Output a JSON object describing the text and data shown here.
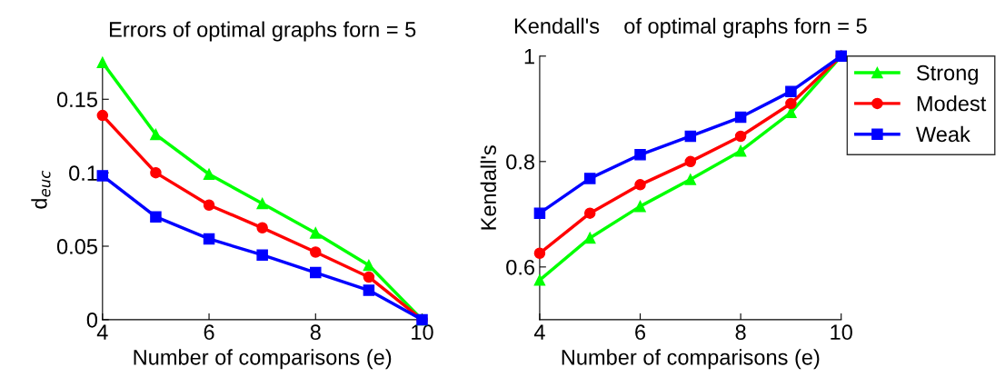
{
  "chart_data": [
    {
      "type": "line",
      "title": "Errors of optimal graphs forn = 5",
      "xlabel": "Number of comparisons (e)",
      "ylabel": "d$_{euc}$",
      "x": [
        4,
        5,
        6,
        7,
        8,
        9,
        10
      ],
      "xlim": [
        4,
        10
      ],
      "xticks": [
        4,
        6,
        8,
        10
      ],
      "ylim": [
        0,
        0.177
      ],
      "yticks": [
        0,
        0.05,
        0.1,
        0.15
      ],
      "grid": false,
      "legend": false,
      "series": [
        {
          "color": "#00ff00",
          "marker": "triangle",
          "values": [
            0.175,
            0.126,
            0.099,
            0.079,
            0.059,
            0.037,
            0
          ]
        },
        {
          "color": "#ff0000",
          "marker": "circle",
          "values": [
            0.139,
            0.1,
            0.078,
            0.0625,
            0.046,
            0.029,
            0
          ]
        },
        {
          "color": "#0000ff",
          "marker": "square",
          "values": [
            0.098,
            0.07,
            0.055,
            0.044,
            0.032,
            0.02,
            0
          ]
        }
      ]
    },
    {
      "type": "line",
      "title": "Kendall's    of optimal graphs forn = 5",
      "xlabel": "Number of comparisons (e)",
      "ylabel": "Kendall's",
      "x": [
        4,
        5,
        6,
        7,
        8,
        9,
        10
      ],
      "xlim": [
        4,
        10
      ],
      "xticks": [
        4,
        6,
        8,
        10
      ],
      "ylim": [
        0.5,
        1
      ],
      "yticks": [
        0.6,
        0.8,
        1
      ],
      "grid": false,
      "legend": "top right",
      "series": [
        {
          "name": "Strong",
          "color": "#00ff00",
          "marker": "triangle",
          "values": [
            0.575,
            0.655,
            0.715,
            0.766,
            0.82,
            0.893,
            1
          ]
        },
        {
          "name": "Modest",
          "color": "#ff0000",
          "marker": "circle",
          "values": [
            0.626,
            0.702,
            0.756,
            0.8,
            0.848,
            0.91,
            1
          ]
        },
        {
          "name": "Weak",
          "color": "#0000ff",
          "marker": "square",
          "values": [
            0.702,
            0.768,
            0.813,
            0.848,
            0.884,
            0.933,
            1
          ]
        }
      ]
    }
  ]
}
